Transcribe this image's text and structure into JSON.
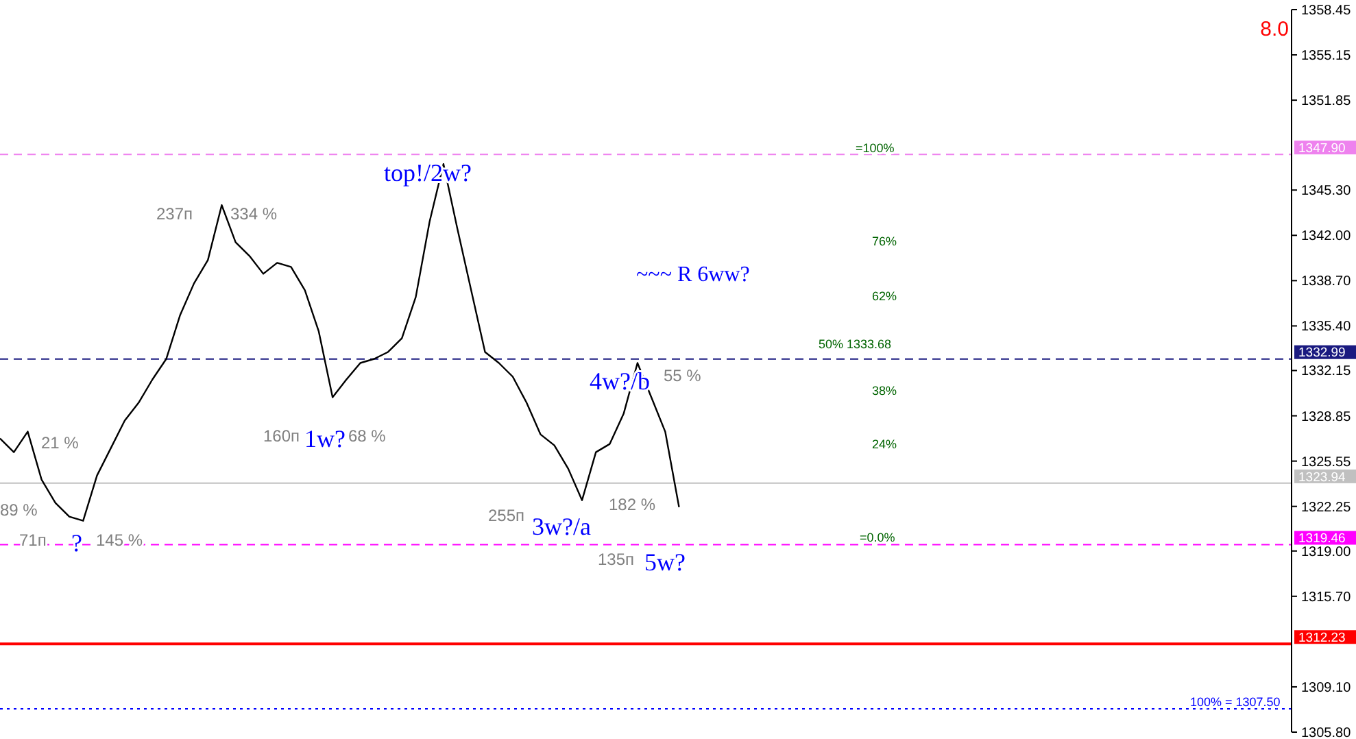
{
  "chart_data": {
    "type": "line",
    "categories": [
      null,
      null,
      null,
      null,
      null,
      null,
      null,
      null,
      null,
      null,
      null,
      null,
      null,
      null,
      null,
      null,
      null,
      null,
      null,
      null,
      null,
      null,
      null,
      null,
      null,
      null,
      null,
      null,
      null,
      null,
      null,
      null,
      null,
      null,
      null,
      null,
      null,
      null,
      null,
      null,
      null,
      null,
      null,
      null,
      null,
      null,
      null,
      null,
      null,
      null,
      null,
      null,
      null,
      null,
      null,
      null,
      null,
      null,
      null,
      null,
      null,
      null,
      null,
      null,
      null,
      null,
      null,
      null,
      null,
      null,
      null,
      null,
      null,
      null,
      null,
      null,
      null,
      null,
      null,
      null,
      null,
      null,
      null,
      null,
      null,
      null,
      null,
      null,
      null,
      null,
      null,
      null,
      null,
      null
    ],
    "series": [
      {
        "color": "#000000",
        "values": [
          1327.2,
          1326.2,
          1327.7,
          1324.2,
          1322.5,
          1321.5,
          1321.2,
          1324.5,
          1326.5,
          1328.5,
          1329.8,
          1331.5,
          1333.0,
          1336.2,
          1338.5,
          1340.2,
          1344.2,
          1341.5,
          1340.5,
          1339.2,
          1340.0,
          1339.7,
          1338.0,
          1335.0,
          1330.2,
          1331.5,
          1332.7,
          1333.0,
          1333.5,
          1334.5,
          1337.5,
          1343.0,
          1347.2,
          1342.5,
          1338.0,
          1333.5,
          1332.7,
          1331.7,
          1329.8,
          1327.5,
          1326.7,
          1325.0,
          1322.7,
          1326.2,
          1326.8,
          1329.0,
          1332.7,
          1330.2,
          1327.7,
          1322.2,
          null,
          null,
          null,
          null,
          null,
          null,
          null,
          null,
          null,
          null,
          null,
          null,
          null,
          null,
          null,
          null,
          null,
          null,
          null,
          null,
          null,
          null,
          null,
          null,
          null,
          null,
          null,
          null,
          null,
          null,
          null,
          null,
          null,
          null,
          null,
          null,
          null,
          null,
          null,
          null,
          null,
          null,
          null,
          null
        ]
      }
    ],
    "ylim": [
      1305.8,
      1358.45
    ],
    "yticks": [
      {
        "value": 1305.8,
        "label": "1305.80"
      },
      {
        "value": 1309.1,
        "label": "1309.10"
      },
      {
        "value": 1315.7,
        "label": "1315.70"
      },
      {
        "value": 1319.0,
        "label": "1319.00"
      },
      {
        "value": 1322.25,
        "label": "1322.25"
      },
      {
        "value": 1325.55,
        "label": "1325.55"
      },
      {
        "value": 1328.85,
        "label": "1328.85"
      },
      {
        "value": 1332.15,
        "label": "1332.15"
      },
      {
        "value": 1335.4,
        "label": "1335.40"
      },
      {
        "value": 1338.7,
        "label": "1338.70"
      },
      {
        "value": 1342.0,
        "label": "1342.00"
      },
      {
        "value": 1345.3,
        "label": "1345.30"
      },
      {
        "value": 1351.85,
        "label": "1351.85"
      },
      {
        "value": 1355.15,
        "label": "1355.15"
      },
      {
        "value": 1358.45,
        "label": "1358.45"
      }
    ],
    "ref_lines": [
      {
        "axis": "y",
        "value": 1347.9,
        "label": "1347.90",
        "color": "#ee82ee",
        "line_style": "dashed"
      },
      {
        "axis": "y",
        "value": 1332.99,
        "label": "1332.99",
        "color": "#1a1a80",
        "line_style": "dashed"
      },
      {
        "axis": "y",
        "value": 1323.94,
        "label": "1323.94",
        "color": "#c0c0c0",
        "line_style": "solid"
      },
      {
        "axis": "y",
        "value": 1319.46,
        "label": "1319.46",
        "color": "#ff00ff",
        "line_style": "dashed"
      },
      {
        "axis": "y",
        "value": 1312.23,
        "label": "1312.23",
        "color": "#ff0000",
        "line_style": "solid"
      },
      {
        "axis": "y",
        "value": 1307.5,
        "color": "#0000ff",
        "line_style": "dotted"
      }
    ],
    "annotations": [
      "8.0",
      "237п",
      "334 %",
      "21 %",
      "89 %",
      "71п",
      "?",
      "145 %",
      "160п",
      "1w?",
      "68 %",
      "top!/2w?",
      "~~~ R 6ww?",
      "4w?/b",
      "55 %",
      "255п",
      "3w?/a",
      "182 %",
      "135п",
      "5w?",
      "=100%",
      "76%",
      "62%",
      "50% 1333.68",
      "38%",
      "24%",
      "=0.0%",
      "100%  = 1307.50"
    ],
    "grid": false
  }
}
